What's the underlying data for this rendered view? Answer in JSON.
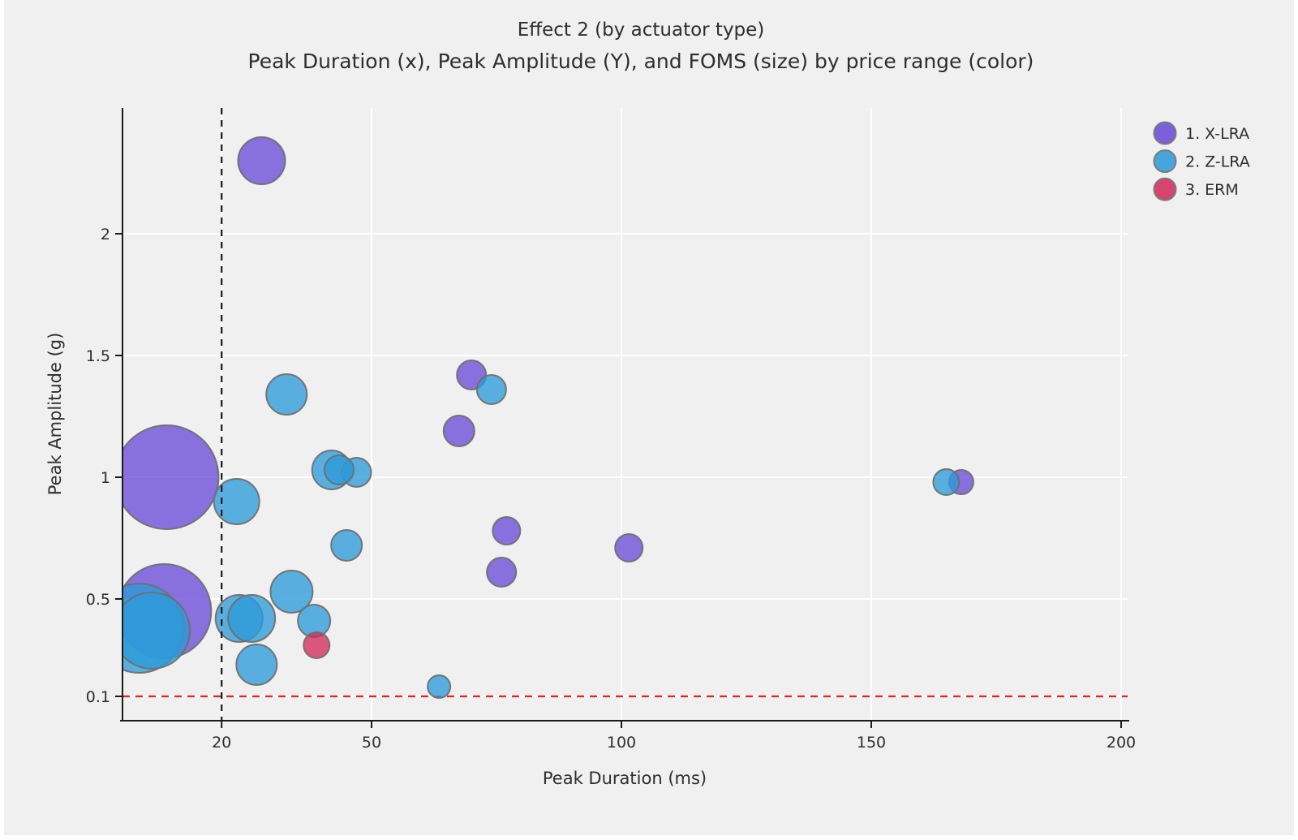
{
  "page": {
    "background_color": "#f0f0f0"
  },
  "chart_data": {
    "type": "scatter",
    "subtype": "bubble",
    "title": "Effect 2 (by actuator type)",
    "subtitle": "Peak Duration (x), Peak Amplitude (Y), and FOMS (size) by price range (color)",
    "xlabel": "Peak Duration (ms)",
    "ylabel": "Peak Amplitude (g)",
    "xlim": [
      0,
      201
    ],
    "ylim": [
      0,
      2.52
    ],
    "x_ticks": [
      20,
      50,
      100,
      150,
      200
    ],
    "y_ticks": [
      0.1,
      0.5,
      1,
      1.5,
      2
    ],
    "grid": true,
    "gridline_color": "#ffffff",
    "size_encoding": "FOMS",
    "marker_opacity": 0.78,
    "marker_stroke": "#6f6f6f",
    "reference_lines": {
      "vertical": {
        "x": 20,
        "style": "dashed",
        "color": "#1a1a1a"
      },
      "horizontal": {
        "y": 0.1,
        "style": "dashed",
        "color": "#e8221f"
      }
    },
    "legend": {
      "position": "top-right",
      "entries": [
        "1. X-LRA",
        "2. Z-LRA",
        "3. ERM"
      ]
    },
    "series": [
      {
        "name": "1. X-LRA",
        "color": "#6a4bd8",
        "points": [
          {
            "x": 28,
            "y": 2.3,
            "r": 29
          },
          {
            "x": 70,
            "y": 1.42,
            "r": 18
          },
          {
            "x": 67.5,
            "y": 1.19,
            "r": 19
          },
          {
            "x": 9,
            "y": 1.0,
            "r": 64
          },
          {
            "x": 8.5,
            "y": 0.45,
            "r": 58
          },
          {
            "x": 77,
            "y": 0.78,
            "r": 17
          },
          {
            "x": 76,
            "y": 0.61,
            "r": 18
          },
          {
            "x": 101.5,
            "y": 0.71,
            "r": 17
          },
          {
            "x": 168,
            "y": 0.98,
            "r": 15
          }
        ]
      },
      {
        "name": "2. Z-LRA",
        "color": "#2d9bd8",
        "points": [
          {
            "x": 74,
            "y": 1.36,
            "r": 18
          },
          {
            "x": 33,
            "y": 1.34,
            "r": 25
          },
          {
            "x": 23,
            "y": 0.9,
            "r": 28
          },
          {
            "x": 42,
            "y": 1.03,
            "r": 24
          },
          {
            "x": 47,
            "y": 1.02,
            "r": 18
          },
          {
            "x": 43.5,
            "y": 1.03,
            "r": 18
          },
          {
            "x": 45,
            "y": 0.72,
            "r": 19
          },
          {
            "x": 165,
            "y": 0.98,
            "r": 16
          },
          {
            "x": 3.5,
            "y": 0.38,
            "r": 55
          },
          {
            "x": 6,
            "y": 0.37,
            "r": 47
          },
          {
            "x": 34,
            "y": 0.53,
            "r": 26
          },
          {
            "x": 23.5,
            "y": 0.42,
            "r": 29
          },
          {
            "x": 26,
            "y": 0.42,
            "r": 29
          },
          {
            "x": 38.5,
            "y": 0.41,
            "r": 20
          },
          {
            "x": 27,
            "y": 0.23,
            "r": 25
          },
          {
            "x": 63.5,
            "y": 0.14,
            "r": 14
          }
        ]
      },
      {
        "name": "3. ERM",
        "color": "#d22b5c",
        "points": [
          {
            "x": 39,
            "y": 0.31,
            "r": 16
          }
        ]
      }
    ]
  }
}
